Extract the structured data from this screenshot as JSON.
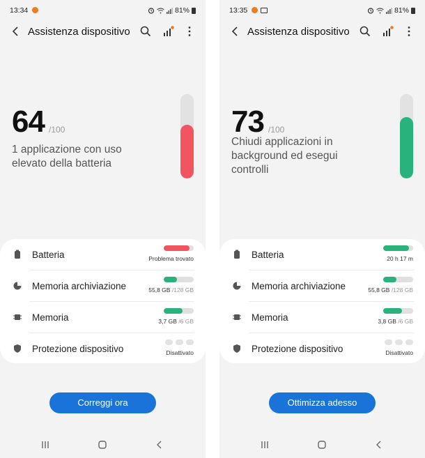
{
  "phones": [
    {
      "status": {
        "time": "13:34",
        "battery": "81%"
      },
      "title": "Assistenza dispositivo",
      "score": "64",
      "score_max": "/100",
      "score_message": "1 applicazione con uso elevato della batteria",
      "score_level": 0.64,
      "score_color": "#f05560",
      "rows": {
        "battery": {
          "label": "Batteria",
          "status": "Problema trovato",
          "level": 0.85,
          "color": "#f05560"
        },
        "storage": {
          "label": "Memoria archiviazione",
          "used": "55,8 GB",
          "total": "/128 GB",
          "level": 0.44,
          "color": "#2ab27b"
        },
        "memory": {
          "label": "Memoria",
          "used": "3,7 GB",
          "total": "/6 GB",
          "level": 0.62,
          "color": "#2ab27b"
        },
        "security": {
          "label": "Protezione dispositivo",
          "status": "Disattivato"
        }
      },
      "action_label": "Correggi ora"
    },
    {
      "status": {
        "time": "13:35",
        "battery": "81%"
      },
      "title": "Assistenza dispositivo",
      "score": "73",
      "score_max": "/100",
      "score_message": "Chiudi applicazioni in background ed esegui controlli",
      "score_level": 0.73,
      "score_color": "#2ab27b",
      "rows": {
        "battery": {
          "label": "Batteria",
          "status": "20 h 17 m",
          "level": 0.85,
          "color": "#2ab27b"
        },
        "storage": {
          "label": "Memoria archiviazione",
          "used": "55,8 GB",
          "total": "/128 GB",
          "level": 0.44,
          "color": "#2ab27b"
        },
        "memory": {
          "label": "Memoria",
          "used": "3,8 GB",
          "total": "/6 GB",
          "level": 0.63,
          "color": "#2ab27b"
        },
        "security": {
          "label": "Protezione dispositivo",
          "status": "Disattivato"
        }
      },
      "action_label": "Ottimizza adesso"
    }
  ]
}
